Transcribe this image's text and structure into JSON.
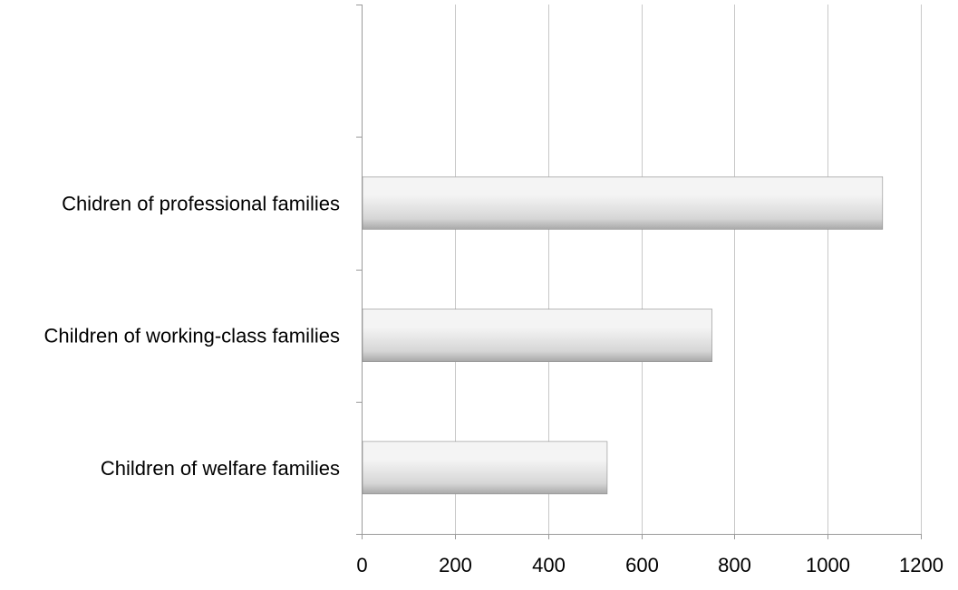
{
  "chart_data": {
    "type": "bar",
    "orientation": "horizontal",
    "categories": [
      "Chidren of professional families",
      "Children of working-class families",
      "Children of welfare families"
    ],
    "values": [
      1116,
      750,
      525
    ],
    "title": "",
    "xlabel": "",
    "ylabel": "",
    "xlim": [
      0,
      1200
    ],
    "x_ticks": [
      "0",
      "200",
      "400",
      "600",
      "800",
      "1000",
      "1200"
    ],
    "grid": true,
    "legend": "none",
    "colors": {
      "bar_light": "#f4f4f4",
      "bar_mid": "#d6d6d6",
      "bar_dark": "#a8a8a8",
      "bar_edge": "#8c8c8c",
      "grid": "#c8c8c8",
      "axis": "#9a9a9a"
    }
  }
}
